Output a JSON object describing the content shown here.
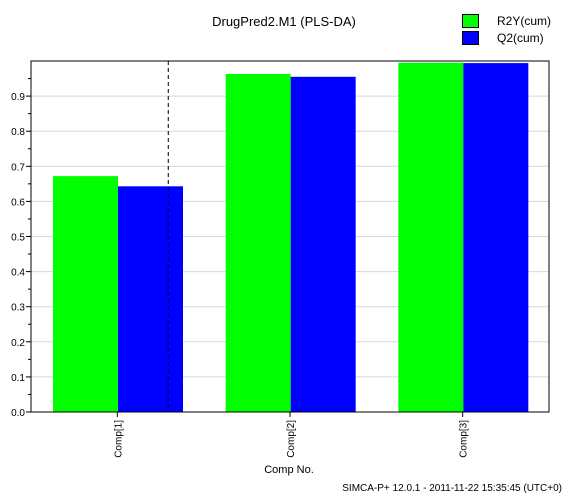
{
  "chart_data": {
    "type": "bar",
    "title": "DrugPred2.M1 (PLS-DA)",
    "xlabel": "Comp No.",
    "ylabel": "",
    "categories": [
      "Comp[1]",
      "Comp[2]",
      "Comp[3]"
    ],
    "series": [
      {
        "name": "R2Y(cum)",
        "color": "#00ff00",
        "values": [
          0.672,
          0.963,
          0.995
        ]
      },
      {
        "name": "Q2(cum)",
        "color": "#0000ff",
        "values": [
          0.643,
          0.955,
          0.994
        ]
      }
    ],
    "ylim": [
      0,
      1
    ],
    "yticks": [
      "0.0",
      "0.1",
      "0.2",
      "0.3",
      "0.4",
      "0.5",
      "0.6",
      "0.7",
      "0.8",
      "0.9"
    ],
    "grid": true,
    "legend_position": "top-right",
    "dashed_marker_after": "Comp[1]"
  },
  "footer": "SIMCA-P+ 12.0.1 - 2011-11-22 15:35:45 (UTC+0)"
}
